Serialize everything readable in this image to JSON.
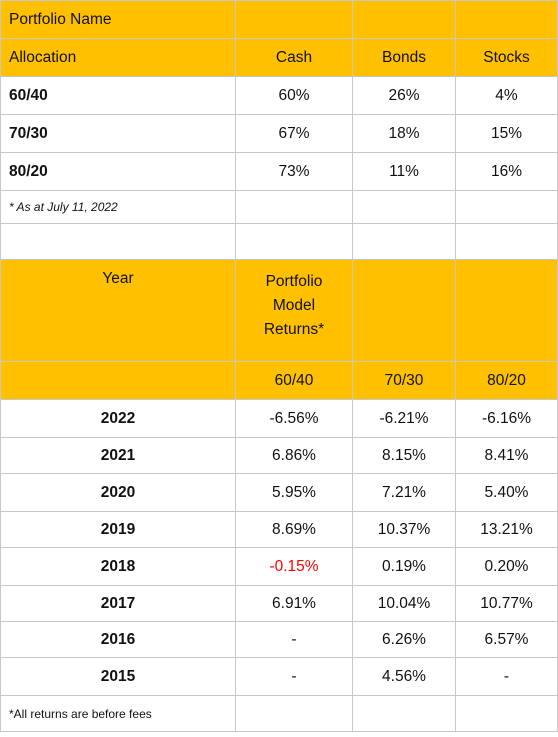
{
  "allocation_table": {
    "portfolio_name_label": "Portfolio Name",
    "allocation_label": "Allocation",
    "columns": [
      "Cash",
      "Bonds",
      "Stocks"
    ],
    "rows": [
      {
        "name": "60/40",
        "cash": "60%",
        "bonds": "26%",
        "stocks": "4%"
      },
      {
        "name": "70/30",
        "cash": "67%",
        "bonds": "18%",
        "stocks": "15%"
      },
      {
        "name": "80/20",
        "cash": "73%",
        "bonds": "11%",
        "stocks": "16%"
      }
    ],
    "footnote": "* As at July 11, 2022"
  },
  "returns_table": {
    "year_label": "Year",
    "returns_header": "Portfolio Model Returns*",
    "portfolio_columns": [
      "60/40",
      "70/30",
      "80/20"
    ],
    "rows": [
      {
        "year": "2022",
        "p6040": "-6.56%",
        "p7030": "-6.21%",
        "p8020": "-6.16%"
      },
      {
        "year": "2021",
        "p6040": "6.86%",
        "p7030": "8.15%",
        "p8020": "8.41%"
      },
      {
        "year": "2020",
        "p6040": "5.95%",
        "p7030": "7.21%",
        "p8020": "5.40%"
      },
      {
        "year": "2019",
        "p6040": "8.69%",
        "p7030": "10.37%",
        "p8020": "13.21%"
      },
      {
        "year": "2018",
        "p6040": "-0.15%",
        "p7030": "0.19%",
        "p8020": "0.20%"
      },
      {
        "year": "2017",
        "p6040": "6.91%",
        "p7030": "10.04%",
        "p8020": "10.77%"
      },
      {
        "year": "2016",
        "p6040": "-",
        "p7030": "6.26%",
        "p8020": "6.57%"
      },
      {
        "year": "2015",
        "p6040": "-",
        "p7030": "4.56%",
        "p8020": "-"
      }
    ],
    "footnote": "*All returns are before fees"
  },
  "colors": {
    "header_gold": "#ffc000",
    "negative_highlight": "#ff0000",
    "grid": "#c8c8c8"
  }
}
